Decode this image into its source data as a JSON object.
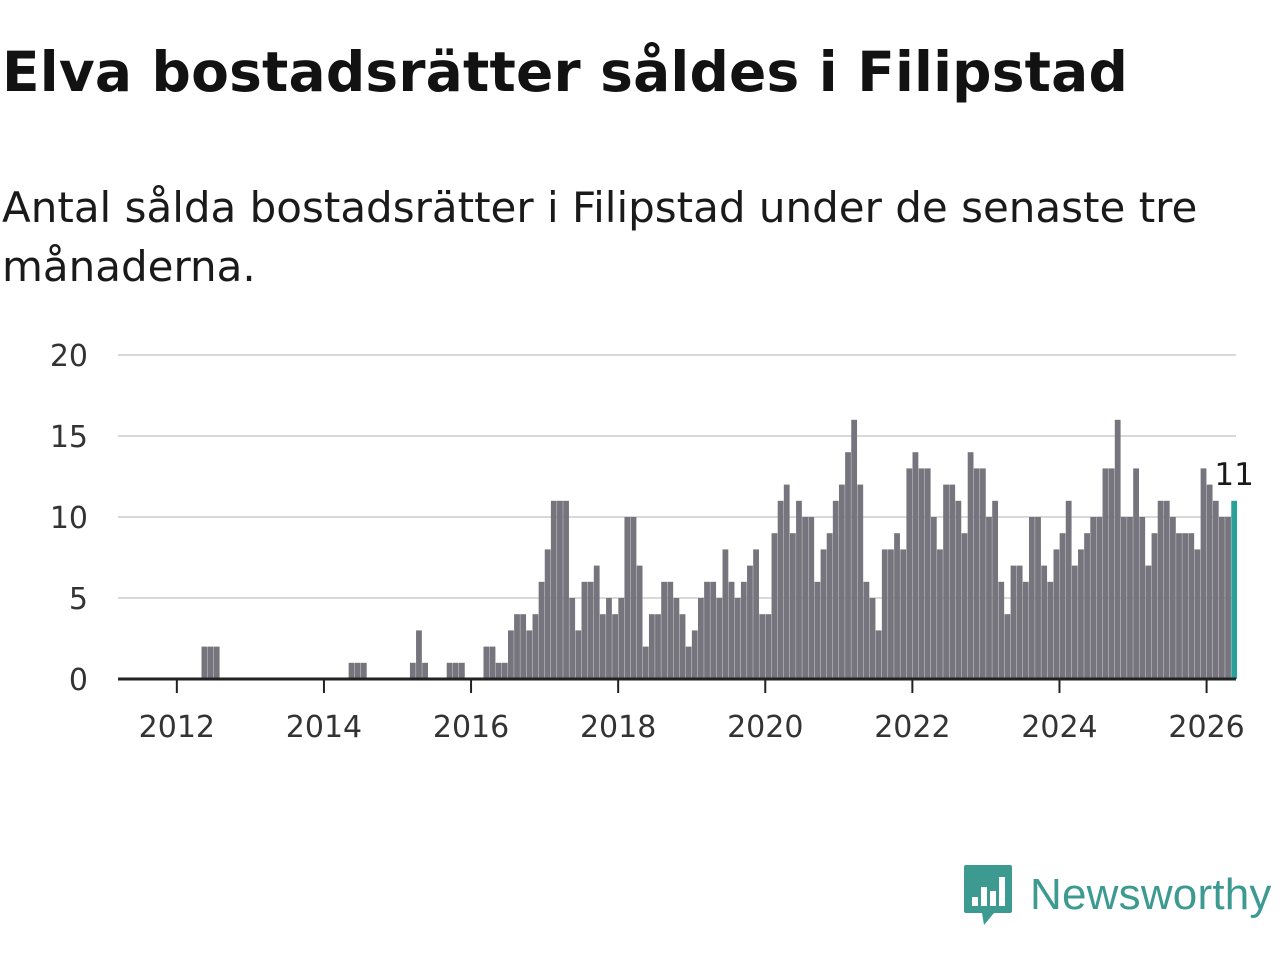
{
  "header": {
    "title": "Elva bostadsrätter såldes i Filipstad",
    "subtitle": "Antal sålda bostadsrätter i Filipstad under de senaste tre månaderna."
  },
  "brand": {
    "name": "Newsworthy",
    "color": "#3d9a91",
    "icon": "newsworthy-logo-icon"
  },
  "chart_data": {
    "type": "bar",
    "title": "Elva bostadsrätter såldes i Filipstad",
    "subtitle": "Antal sålda bostadsrätter i Filipstad under de senaste tre månaderna.",
    "xlabel": "",
    "ylabel": "",
    "x_start": "2011-06",
    "interval": "month",
    "x_range": [
      2011.2,
      2026.4
    ],
    "ylim": [
      0,
      20
    ],
    "yticks": [
      0,
      5,
      10,
      15,
      20
    ],
    "xticks": [
      2012,
      2014,
      2016,
      2018,
      2020,
      2022,
      2024,
      2026
    ],
    "grid": true,
    "legend": "none",
    "bar_color": "#76757d",
    "highlight_color": "#2aa198",
    "highlight_label": "11",
    "values": [
      0,
      0,
      0,
      0,
      0,
      0,
      0,
      0,
      0,
      0,
      0,
      2,
      2,
      2,
      0,
      0,
      0,
      0,
      0,
      0,
      0,
      0,
      0,
      0,
      0,
      0,
      0,
      0,
      0,
      0,
      0,
      0,
      0,
      0,
      0,
      1,
      1,
      1,
      0,
      0,
      0,
      0,
      0,
      0,
      0,
      1,
      3,
      1,
      0,
      0,
      0,
      1,
      1,
      1,
      0,
      0,
      0,
      2,
      2,
      1,
      1,
      3,
      4,
      4,
      3,
      4,
      6,
      8,
      11,
      11,
      11,
      5,
      3,
      6,
      6,
      7,
      4,
      5,
      4,
      5,
      10,
      10,
      7,
      2,
      4,
      4,
      6,
      6,
      5,
      4,
      2,
      3,
      5,
      6,
      6,
      5,
      8,
      6,
      5,
      6,
      7,
      8,
      4,
      4,
      9,
      11,
      12,
      9,
      11,
      10,
      10,
      6,
      8,
      9,
      11,
      12,
      14,
      16,
      12,
      6,
      5,
      3,
      8,
      8,
      9,
      8,
      13,
      14,
      13,
      13,
      10,
      8,
      12,
      12,
      11,
      9,
      14,
      13,
      13,
      10,
      11,
      6,
      4,
      7,
      7,
      6,
      10,
      10,
      7,
      6,
      8,
      9,
      11,
      7,
      8,
      9,
      10,
      10,
      13,
      13,
      16,
      10,
      10,
      13,
      10,
      7,
      9,
      11,
      11,
      10,
      9,
      9,
      9,
      8,
      13,
      12,
      11,
      10,
      10,
      11
    ]
  }
}
